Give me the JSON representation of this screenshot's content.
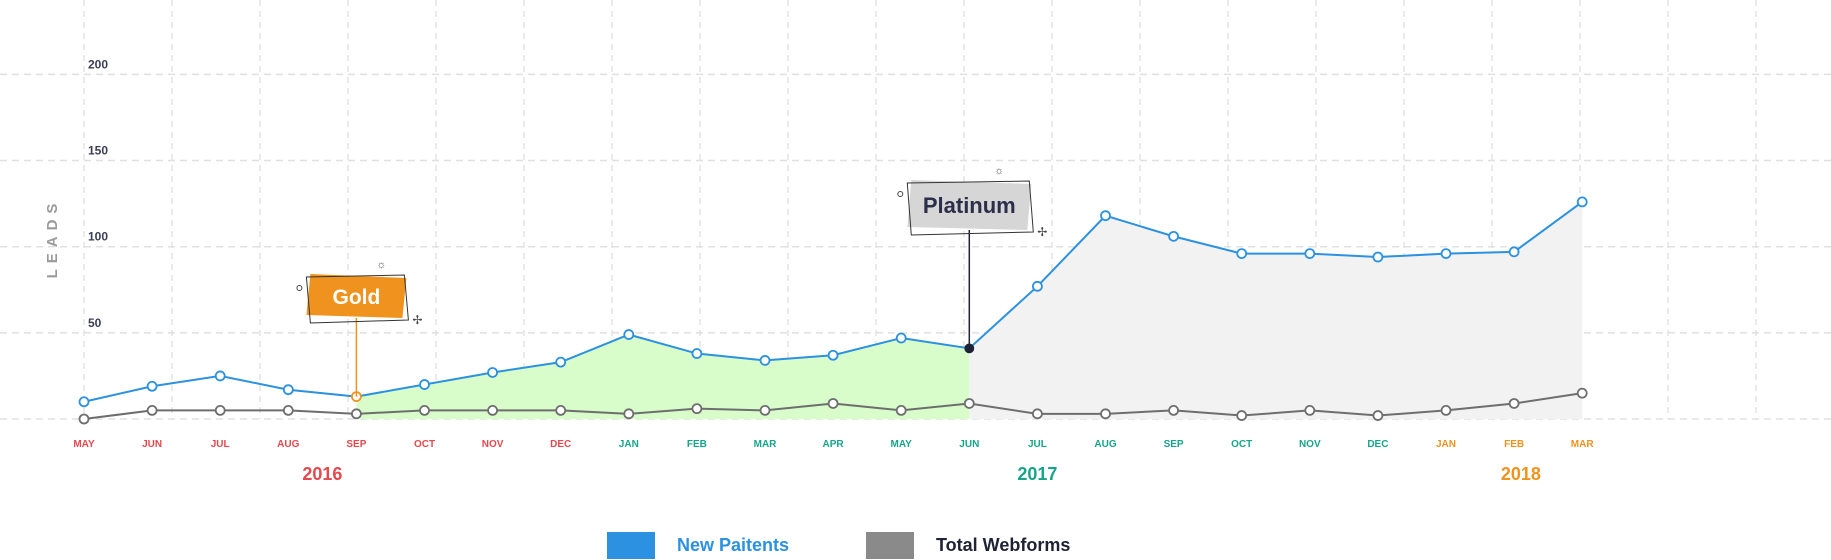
{
  "chart_data": {
    "type": "line",
    "ylabel": "LEADS",
    "yticks": [
      50,
      100,
      150,
      200
    ],
    "ylim": [
      0,
      210
    ],
    "grid": true,
    "categories": [
      "MAY",
      "JUN",
      "JUL",
      "AUG",
      "SEP",
      "OCT",
      "NOV",
      "DEC",
      "JAN",
      "FEB",
      "MAR",
      "APR",
      "MAY",
      "JUN",
      "JUL",
      "AUG",
      "SEP",
      "OCT",
      "NOV",
      "DEC",
      "JAN",
      "FEB",
      "MAR"
    ],
    "category_colors": [
      "#e5484d",
      "#e5484d",
      "#e5484d",
      "#e5484d",
      "#e5484d",
      "#e5484d",
      "#e5484d",
      "#e5484d",
      "#17a589",
      "#17a589",
      "#17a589",
      "#17a589",
      "#17a589",
      "#17a589",
      "#17a589",
      "#17a589",
      "#17a589",
      "#17a589",
      "#17a589",
      "#17a589",
      "#f0931e",
      "#f0931e",
      "#f0931e"
    ],
    "years": [
      {
        "label": "2016",
        "color": "#e5484d",
        "center_index": 3.5
      },
      {
        "label": "2017",
        "color": "#17a589",
        "center_index": 14
      },
      {
        "label": "2018",
        "color": "#f0931e",
        "center_index": 21.1
      }
    ],
    "series": [
      {
        "name": "New Paitents",
        "color": "#2b91e0",
        "values": [
          10,
          19,
          25,
          17,
          13,
          20,
          27,
          33,
          49,
          38,
          34,
          37,
          47,
          41,
          77,
          118,
          106,
          96,
          96,
          94,
          96,
          97,
          126
        ]
      },
      {
        "name": "Total Webforms",
        "color": "#6e6e6e",
        "values": [
          0,
          5,
          5,
          5,
          3,
          5,
          5,
          5,
          3,
          6,
          5,
          9,
          5,
          9,
          3,
          3,
          5,
          2,
          5,
          2,
          5,
          9,
          15
        ]
      }
    ],
    "annotations": [
      {
        "label": "Gold",
        "index": 4,
        "color": "#f0931e",
        "text_color": "#ffffff"
      },
      {
        "label": "Platinum",
        "index": 13,
        "color": "#d6d6d6",
        "text_color": "#2c2f4a"
      }
    ],
    "shaded_regions": [
      {
        "from_index": 4,
        "to_index": 13,
        "color": "#d8fcca"
      },
      {
        "from_index": 13,
        "to_index": 22,
        "color": "#f2f2f2"
      }
    ]
  },
  "legend": {
    "items": [
      {
        "label": "New Paitents",
        "color": "#2b91e0",
        "text_color": "#2b91e0"
      },
      {
        "label": "Total Webforms",
        "color": "#8a8a8a",
        "text_color": "#1f2235"
      }
    ]
  }
}
